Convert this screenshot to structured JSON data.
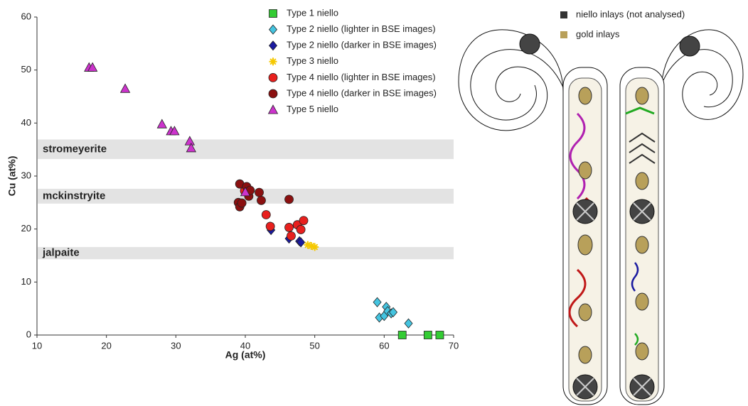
{
  "chart_data": {
    "type": "scatter",
    "x_label": "Ag (at%)",
    "y_label": "Cu (at%)",
    "xlim": [
      10,
      70
    ],
    "xticks": [
      10,
      20,
      30,
      40,
      50,
      60,
      70
    ],
    "ylim": [
      0,
      60
    ],
    "yticks": [
      0,
      10,
      20,
      30,
      40,
      50,
      60
    ],
    "grid": false,
    "bands": [
      {
        "label": "stromeyerite",
        "range": [
          33.2,
          36.9
        ],
        "color": "#e3e3e3"
      },
      {
        "label": "mckinstryite",
        "range": [
          24.8,
          27.6
        ],
        "color": "#e3e3e3"
      },
      {
        "label": "jalpaite",
        "range": [
          14.3,
          16.6
        ],
        "color": "#e3e3e3"
      }
    ],
    "series": [
      {
        "name": "Type 1 niello",
        "color": "#33cc33",
        "marker": "square",
        "x": [
          62.6,
          66.3,
          68.0
        ],
        "values": [
          0,
          0,
          0
        ]
      },
      {
        "name": "Type 2 niello (lighter in BSE images)",
        "color": "#44c4e0",
        "marker": "diamond",
        "x": [
          59.0,
          59.3,
          60.0,
          60.3,
          60.5,
          61.0,
          61.3,
          63.5
        ],
        "values": [
          6.2,
          3.3,
          3.6,
          5.3,
          4.5,
          4.1,
          4.3,
          2.2
        ]
      },
      {
        "name": "Type 2 niello (darker in BSE images)",
        "color": "#1a1aa0",
        "marker": "diamond",
        "x": [
          43.7,
          46.3,
          47.8,
          48.0
        ],
        "values": [
          19.8,
          18.2,
          17.7,
          17.5
        ]
      },
      {
        "name": "Type 3 niello",
        "color": "#f5c800",
        "marker": "star",
        "x": [
          49.0,
          49.5,
          50.0
        ],
        "values": [
          17.0,
          16.8,
          16.6
        ]
      },
      {
        "name": "Type 4 niello (lighter in BSE images)",
        "color": "#e8201e",
        "marker": "circle",
        "x": [
          39.9,
          43.0,
          43.6,
          46.3,
          46.6,
          47.5,
          48.0,
          48.4
        ],
        "values": [
          27.2,
          22.7,
          20.5,
          20.3,
          18.7,
          20.8,
          19.9,
          21.6
        ]
      },
      {
        "name": "Type 4 niello (darker in BSE images)",
        "color": "#8b1010",
        "marker": "circle",
        "x": [
          39.2,
          39.0,
          39.2,
          39.5,
          40.2,
          40.5,
          40.7,
          42.0,
          42.3,
          46.3
        ],
        "values": [
          28.5,
          25.0,
          24.2,
          24.9,
          28.0,
          26.2,
          27.3,
          26.9,
          25.4,
          25.6
        ]
      },
      {
        "name": "Type 5 niello",
        "color": "#cc33cc",
        "marker": "triangle",
        "x": [
          17.5,
          18.0,
          22.7,
          28.0,
          29.3,
          29.8,
          32.0,
          32.2,
          40.0
        ],
        "values": [
          50.5,
          50.5,
          46.5,
          39.8,
          38.5,
          38.5,
          36.6,
          35.3,
          27.0
        ]
      }
    ]
  },
  "figure": {
    "legend": [
      {
        "label": "niello inlays (not analysed)",
        "color": "#333333"
      },
      {
        "label": "gold inlays",
        "color": "#b8a05a"
      }
    ]
  }
}
